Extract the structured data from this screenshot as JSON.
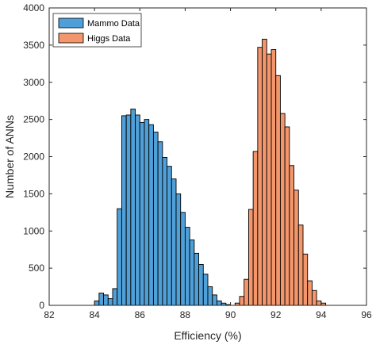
{
  "chart_data": {
    "type": "bar",
    "xlabel": "Efficiency (%)",
    "ylabel": "Number of ANNs",
    "xlim": [
      82,
      96
    ],
    "ylim": [
      0,
      4000
    ],
    "xticks": [
      82,
      84,
      86,
      88,
      90,
      92,
      94,
      96
    ],
    "yticks": [
      0,
      500,
      1000,
      1500,
      2000,
      2500,
      3000,
      3500,
      4000
    ],
    "grid": false,
    "legend_position": "top-left",
    "bin_width": 0.2,
    "series": [
      {
        "name": "Mammo Data",
        "color": "#4f9fd8",
        "bin_starts": [
          84.0,
          84.2,
          84.4,
          84.6,
          84.8,
          85.0,
          85.2,
          85.4,
          85.6,
          85.8,
          86.0,
          86.2,
          86.4,
          86.6,
          86.8,
          87.0,
          87.2,
          87.4,
          87.6,
          87.8,
          88.0,
          88.2,
          88.4,
          88.6,
          88.8,
          89.0,
          89.2,
          89.4,
          89.6,
          89.8
        ],
        "values": [
          60,
          165,
          140,
          90,
          225,
          1300,
          2550,
          2560,
          2640,
          2560,
          2460,
          2500,
          2430,
          2330,
          2200,
          1990,
          1870,
          1700,
          1500,
          1250,
          1050,
          880,
          700,
          550,
          420,
          250,
          140,
          60,
          30,
          10
        ]
      },
      {
        "name": "Higgs Data",
        "color": "#f4966b",
        "bin_starts": [
          90.2,
          90.4,
          90.6,
          90.8,
          91.0,
          91.2,
          91.4,
          91.6,
          91.8,
          92.0,
          92.2,
          92.4,
          92.6,
          92.8,
          93.0,
          93.2,
          93.4,
          93.6,
          93.8,
          94.0
        ],
        "values": [
          30,
          120,
          350,
          1290,
          2070,
          3470,
          3580,
          3380,
          3440,
          3090,
          2580,
          2400,
          1880,
          1550,
          1080,
          690,
          330,
          200,
          60,
          30
        ]
      }
    ]
  }
}
